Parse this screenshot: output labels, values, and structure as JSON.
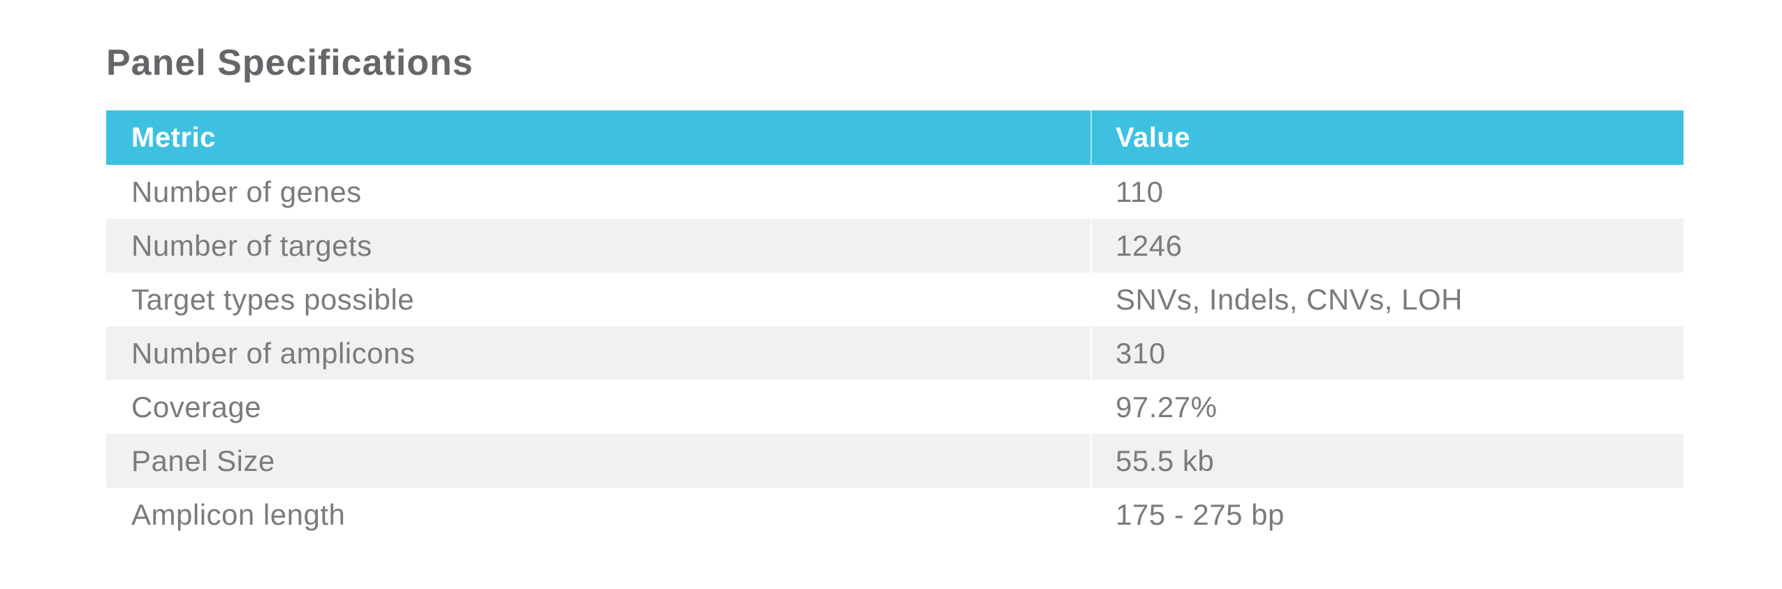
{
  "title": "Panel Specifications",
  "table": {
    "columns": [
      "Metric",
      "Value"
    ],
    "rows": [
      {
        "metric": "Number of genes",
        "value": "110"
      },
      {
        "metric": "Number of targets",
        "value": "1246"
      },
      {
        "metric": "Target types possible",
        "value": "SNVs, Indels, CNVs, LOH"
      },
      {
        "metric": "Number of amplicons",
        "value": "310"
      },
      {
        "metric": "Coverage",
        "value": "97.27%"
      },
      {
        "metric": "Panel Size",
        "value": "55.5 kb"
      },
      {
        "metric": "Amplicon length",
        "value": "175 - 275 bp"
      }
    ]
  },
  "colors": {
    "header_background": "#3EC1E1",
    "header_text": "#FFFFFF",
    "row_stripe": "#F1F1F2",
    "body_text": "#7A7B7E",
    "title_text": "#66666A",
    "page_background": "#FFFFFF"
  }
}
